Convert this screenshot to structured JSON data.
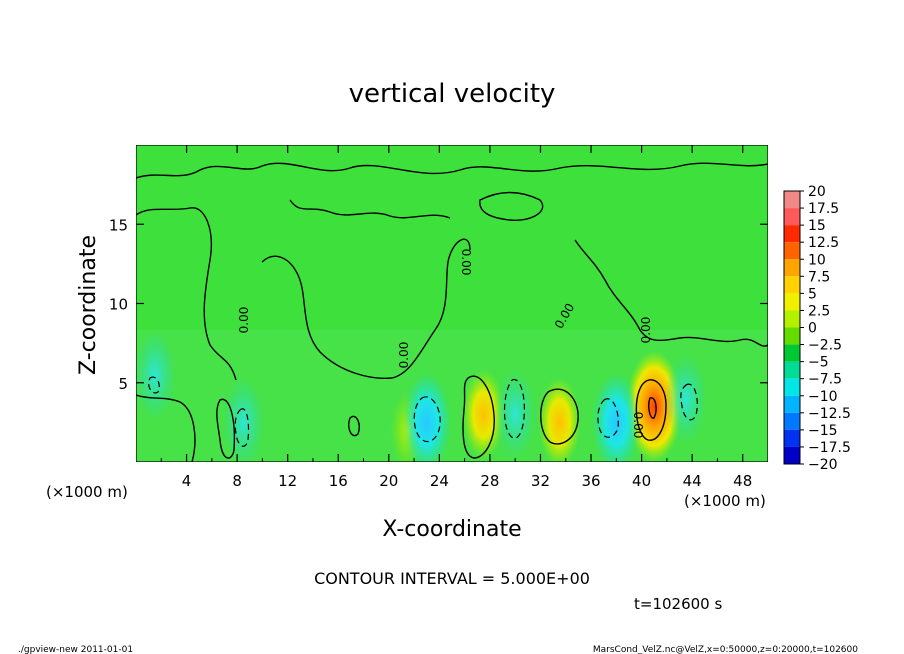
{
  "chart_data": {
    "type": "heatmap",
    "title": "vertical velocity",
    "xlabel": "X-coordinate",
    "ylabel": "Z-coordinate",
    "x_unit_left": "(×1000 m)",
    "x_unit_right": "(×1000 m)",
    "xlim": [
      0,
      50
    ],
    "ylim": [
      0,
      20
    ],
    "x_ticks": [
      4,
      8,
      12,
      16,
      20,
      24,
      28,
      32,
      36,
      40,
      44,
      48
    ],
    "y_ticks": [
      5,
      10,
      15
    ],
    "contour_interval_text": "CONTOUR INTERVAL = 5.000E+00",
    "time_text": "t=102600 s",
    "zero_contour_label": "0.00",
    "colorbar": {
      "levels": [
        "20",
        "17.5",
        "15",
        "12.5",
        "10",
        "7.5",
        "5",
        "2.5",
        "0",
        "-2.5",
        "-5",
        "-7.5",
        "-10",
        "-12.5",
        "-15",
        "-17.5",
        "-20"
      ],
      "colors": [
        "#f08888",
        "#ff5a5a",
        "#ff2a00",
        "#ff6400",
        "#ffa500",
        "#ffd200",
        "#f0f000",
        "#b4f000",
        "#64dc00",
        "#00c832",
        "#00dc96",
        "#00e6e6",
        "#00b4ff",
        "#0078ff",
        "#0032f0",
        "#0000c8",
        "#6400b4"
      ]
    },
    "features": [
      {
        "kind": "updraft",
        "x": 41,
        "z": 3.5,
        "peak": 10
      },
      {
        "kind": "updraft",
        "x": 27.5,
        "z": 3.0,
        "peak": 5
      },
      {
        "kind": "updraft",
        "x": 33.5,
        "z": 2.5,
        "peak": 5
      },
      {
        "kind": "updraft",
        "x": 21.5,
        "z": 2.0,
        "peak": 2.5
      },
      {
        "kind": "downdraft",
        "x": 23,
        "z": 2.5,
        "peak": -7.5
      },
      {
        "kind": "downdraft",
        "x": 30,
        "z": 3.0,
        "peak": -5
      },
      {
        "kind": "downdraft",
        "x": 38,
        "z": 2.5,
        "peak": -7.5
      },
      {
        "kind": "downdraft",
        "x": 43.5,
        "z": 4.0,
        "peak": -5
      },
      {
        "kind": "downdraft",
        "x": 8.5,
        "z": 2.5,
        "peak": -5
      },
      {
        "kind": "downdraft",
        "x": 1.5,
        "z": 5.5,
        "peak": -5
      }
    ]
  },
  "footer": {
    "left": "./gpview-new  2011-01-01",
    "right": "MarsCond_VelZ.nc@VelZ,x=0:50000,z=0:20000,t=102600"
  }
}
